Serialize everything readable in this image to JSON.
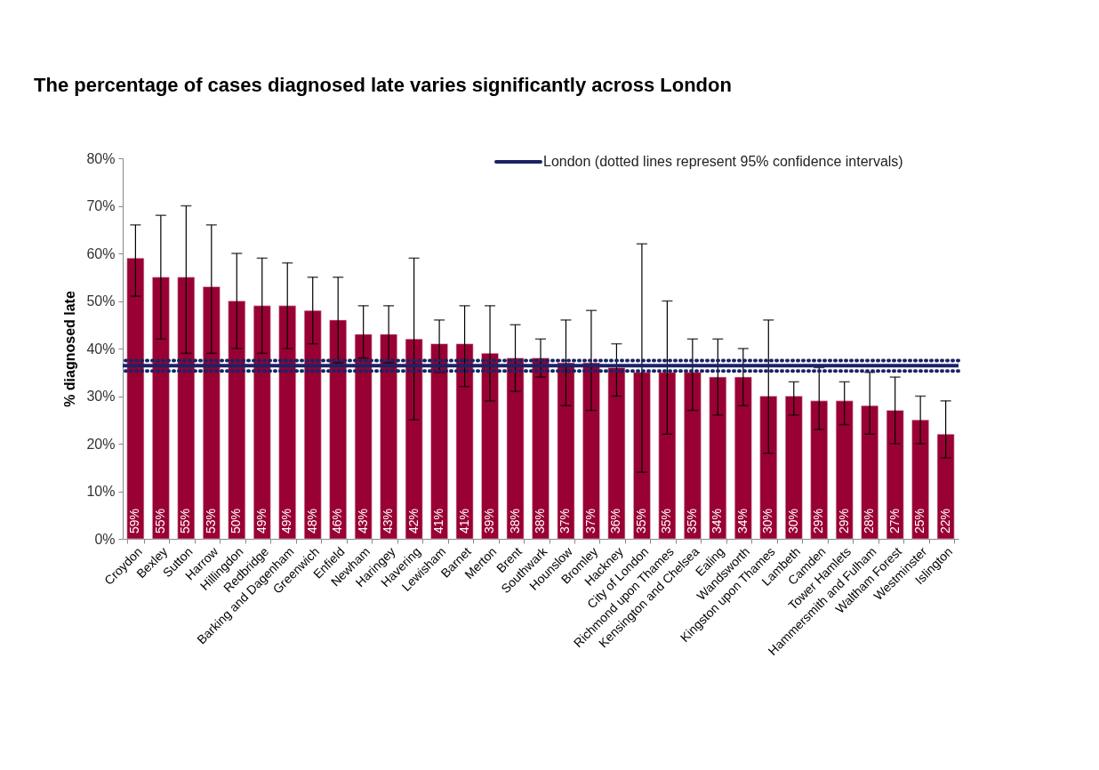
{
  "chart_data": {
    "type": "bar",
    "title": "The percentage of cases diagnosed late varies significantly across London",
    "ylabel": "% diagnosed late",
    "categories": [
      "Croydon",
      "Bexley",
      "Sutton",
      "Harrow",
      "Hillingdon",
      "Redbridge",
      "Barking and Dagenham",
      "Greenwich",
      "Enfield",
      "Newham",
      "Haringey",
      "Havering",
      "Lewisham",
      "Barnet",
      "Merton",
      "Brent",
      "Southwark",
      "Hounslow",
      "Bromley",
      "Hackney",
      "City of London",
      "Richmond upon Thames",
      "Kensington and Chelsea",
      "Ealing",
      "Wandsworth",
      "Kingston upon Thames",
      "Lambeth",
      "Camden",
      "Tower Hamlets",
      "Hammersmith and Fulham",
      "Waltham Forest",
      "Westminster",
      "Islington"
    ],
    "values": [
      59,
      55,
      55,
      53,
      50,
      49,
      49,
      48,
      46,
      43,
      43,
      42,
      41,
      41,
      39,
      38,
      38,
      37,
      37,
      36,
      35,
      35,
      35,
      34,
      34,
      30,
      30,
      29,
      29,
      28,
      27,
      25,
      22
    ],
    "value_labels": [
      "59%",
      "55%",
      "55%",
      "53%",
      "50%",
      "49%",
      "49%",
      "48%",
      "46%",
      "43%",
      "43%",
      "42%",
      "41%",
      "41%",
      "39%",
      "38%",
      "38%",
      "37%",
      "37%",
      "36%",
      "35%",
      "35%",
      "35%",
      "34%",
      "34%",
      "30%",
      "30%",
      "29%",
      "29%",
      "28%",
      "27%",
      "25%",
      "22%"
    ],
    "errors": [
      [
        51,
        66
      ],
      [
        42,
        68
      ],
      [
        39,
        70
      ],
      [
        39,
        66
      ],
      [
        40,
        60
      ],
      [
        39,
        59
      ],
      [
        40,
        58
      ],
      [
        41,
        55
      ],
      [
        37,
        55
      ],
      [
        38,
        49
      ],
      [
        37,
        49
      ],
      [
        25,
        59
      ],
      [
        35,
        46
      ],
      [
        32,
        49
      ],
      [
        29,
        49
      ],
      [
        31,
        45
      ],
      [
        34,
        42
      ],
      [
        28,
        46
      ],
      [
        27,
        48
      ],
      [
        30,
        41
      ],
      [
        14,
        62
      ],
      [
        22,
        50
      ],
      [
        27,
        42
      ],
      [
        26,
        42
      ],
      [
        28,
        40
      ],
      [
        18,
        46
      ],
      [
        26,
        33
      ],
      [
        23,
        36
      ],
      [
        24,
        33
      ],
      [
        22,
        35
      ],
      [
        20,
        34
      ],
      [
        20,
        30
      ],
      [
        17,
        29
      ]
    ],
    "color": "#990033",
    "ylim": [
      0,
      80
    ],
    "yticks": [
      {
        "value": 0,
        "label": "0%"
      },
      {
        "value": 10,
        "label": "10%"
      },
      {
        "value": 20,
        "label": "20%"
      },
      {
        "value": 30,
        "label": "30%"
      },
      {
        "value": 40,
        "label": "40%"
      },
      {
        "value": 50,
        "label": "50%"
      },
      {
        "value": 60,
        "label": "60%"
      },
      {
        "value": 70,
        "label": "70%"
      },
      {
        "value": 80,
        "label": "80%"
      }
    ],
    "ref_lines": [
      {
        "axis": "y",
        "value": 36.4,
        "label": "London (dotted lines represent 95% confidence intervals)",
        "color": "#1a2366",
        "line_style": "solid"
      },
      {
        "axis": "y",
        "value": 37.5,
        "color": "#1a2366",
        "line_style": "dotted"
      },
      {
        "axis": "y",
        "value": 35.3,
        "color": "#1a2366",
        "line_style": "dotted"
      }
    ]
  }
}
